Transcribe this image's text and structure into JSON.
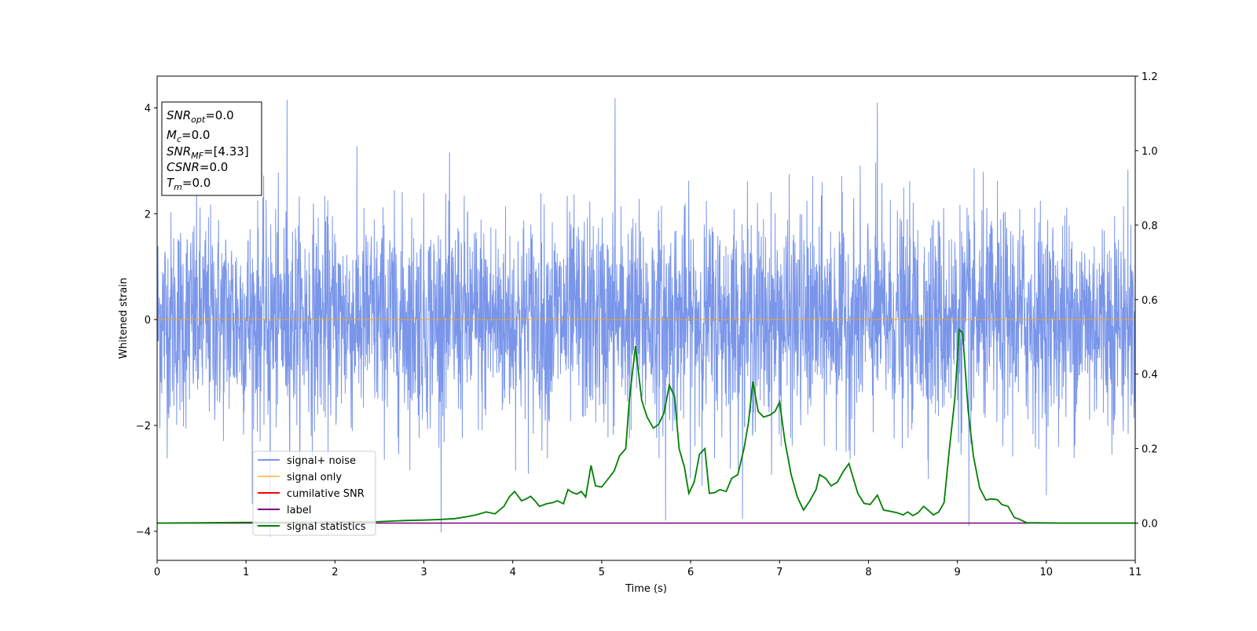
{
  "chart_data": {
    "type": "line",
    "xlabel": "Time (s)",
    "ylabel": "Whitened strain",
    "xlim": [
      0,
      11
    ],
    "ylim": [
      -4.55,
      4.6
    ],
    "y2lim": [
      -0.1,
      1.2
    ],
    "x_ticks": [
      "0",
      "1",
      "2",
      "3",
      "4",
      "5",
      "6",
      "7",
      "8",
      "9",
      "10",
      "11"
    ],
    "y_ticks": [
      "−4",
      "−2",
      "0",
      "2",
      "4"
    ],
    "y2_ticks": [
      "0.0",
      "0.2",
      "0.4",
      "0.6",
      "0.8",
      "1.0",
      "1.2"
    ],
    "grid": false,
    "legend_placement": "lower-left",
    "annotation": {
      "lines": [
        {
          "main": "SNR",
          "sub": "opt",
          "rest": "=0.0",
          "italic": true
        },
        {
          "main": "M",
          "sub": "c",
          "rest": "=0.0",
          "italic": true
        },
        {
          "main": "SNR",
          "sub": "MF",
          "rest": "=[4.33]",
          "italic": true
        },
        {
          "main": "CSNR",
          "sub": "",
          "rest": "=0.0",
          "italic": true
        },
        {
          "main": "T",
          "sub": "m",
          "rest": "=0.0",
          "italic": true
        }
      ]
    },
    "series": [
      {
        "name": "signal+ noise",
        "color": "#4169e1",
        "axis": "left",
        "kind": "noise",
        "mean": 0.0,
        "std": 1.0,
        "y_range_observed": [
          -4.1,
          4.2
        ],
        "note_points": [
          [
            1.46,
            4.15
          ],
          [
            5.15,
            4.18
          ],
          [
            8.1,
            4.1
          ],
          [
            5.72,
            -3.8
          ],
          [
            9.13,
            -3.9
          ],
          [
            1.27,
            -4.1
          ]
        ]
      },
      {
        "name": "signal only",
        "color": "#ffa500",
        "axis": "left",
        "x": [
          0,
          11
        ],
        "y": [
          0,
          0
        ]
      },
      {
        "name": "cumilative SNR",
        "color": "#ff0000",
        "axis": "right",
        "x": [],
        "y": []
      },
      {
        "name": "label",
        "color": "#800080",
        "axis": "right",
        "x": [
          0,
          11
        ],
        "y": [
          0,
          0
        ]
      },
      {
        "name": "signal statistics",
        "color": "#008000",
        "axis": "right",
        "x": [
          0,
          0.5,
          1.0,
          1.5,
          2.0,
          2.5,
          2.8,
          3.0,
          3.2,
          3.35,
          3.5,
          3.6,
          3.7,
          3.8,
          3.9,
          3.96,
          4.02,
          4.1,
          4.15,
          4.2,
          4.25,
          4.3,
          4.38,
          4.45,
          4.5,
          4.57,
          4.62,
          4.67,
          4.72,
          4.77,
          4.82,
          4.88,
          4.93,
          5.0,
          5.07,
          5.14,
          5.2,
          5.27,
          5.31,
          5.38,
          5.45,
          5.51,
          5.58,
          5.64,
          5.7,
          5.76,
          5.82,
          5.87,
          5.93,
          5.98,
          6.04,
          6.1,
          6.16,
          6.21,
          6.27,
          6.33,
          6.4,
          6.46,
          6.53,
          6.6,
          6.65,
          6.7,
          6.76,
          6.82,
          6.89,
          6.95,
          7.0,
          7.06,
          7.13,
          7.2,
          7.27,
          7.34,
          7.41,
          7.45,
          7.52,
          7.58,
          7.65,
          7.72,
          7.78,
          7.83,
          7.88,
          7.95,
          8.02,
          8.1,
          8.17,
          8.24,
          8.32,
          8.39,
          8.44,
          8.5,
          8.56,
          8.62,
          8.67,
          8.73,
          8.79,
          8.85,
          8.91,
          8.97,
          9.02,
          9.06,
          9.12,
          9.18,
          9.25,
          9.32,
          9.38,
          9.45,
          9.5,
          9.57,
          9.64,
          9.7,
          9.78,
          9.9,
          10.2,
          10.6,
          11.0
        ],
        "y": [
          0.0,
          0.001,
          0.002,
          0.002,
          0.003,
          0.004,
          0.007,
          0.008,
          0.01,
          0.012,
          0.018,
          0.023,
          0.03,
          0.025,
          0.045,
          0.07,
          0.085,
          0.06,
          0.065,
          0.072,
          0.06,
          0.045,
          0.052,
          0.055,
          0.06,
          0.052,
          0.09,
          0.082,
          0.078,
          0.085,
          0.07,
          0.155,
          0.1,
          0.097,
          0.118,
          0.14,
          0.18,
          0.2,
          0.33,
          0.475,
          0.33,
          0.285,
          0.255,
          0.265,
          0.295,
          0.37,
          0.34,
          0.2,
          0.15,
          0.08,
          0.11,
          0.185,
          0.2,
          0.08,
          0.082,
          0.09,
          0.085,
          0.12,
          0.13,
          0.2,
          0.27,
          0.38,
          0.3,
          0.285,
          0.29,
          0.3,
          0.325,
          0.22,
          0.13,
          0.07,
          0.035,
          0.06,
          0.09,
          0.13,
          0.12,
          0.1,
          0.11,
          0.14,
          0.16,
          0.12,
          0.08,
          0.053,
          0.05,
          0.075,
          0.035,
          0.032,
          0.028,
          0.022,
          0.03,
          0.02,
          0.028,
          0.045,
          0.035,
          0.022,
          0.03,
          0.055,
          0.2,
          0.33,
          0.52,
          0.51,
          0.305,
          0.18,
          0.095,
          0.062,
          0.065,
          0.063,
          0.05,
          0.045,
          0.015,
          0.01,
          0.001,
          0.001,
          0.0,
          0.0,
          0.0
        ]
      }
    ]
  }
}
